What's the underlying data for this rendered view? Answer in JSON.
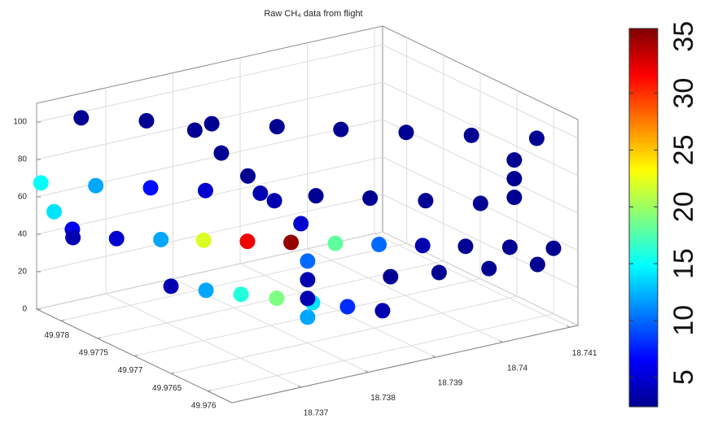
{
  "chart_data": {
    "type": "scatter3d",
    "title": "Raw CH₄ data from flight",
    "x": [
      49.9784,
      49.97806,
      49.97772,
      49.97738,
      49.97705,
      49.97671,
      49.97637,
      49.97603,
      49.97607,
      49.97607,
      49.97607,
      49.9761,
      49.97639,
      49.97668,
      49.97696,
      49.97725,
      49.97754,
      49.97783,
      49.97811,
      49.9784,
      49.97833,
      49.9782,
      49.97811,
      49.9779,
      49.97769,
      49.97749,
      49.97728,
      49.97707,
      49.97686,
      49.97665,
      49.97644,
      49.97624,
      49.97603,
      49.97582,
      49.97612,
      49.97625,
      49.97639,
      49.97652,
      49.97801,
      49.97778,
      49.97755,
      49.97732,
      49.97708,
      49.97685,
      49.97662,
      49.977,
      49.977,
      49.977,
      49.977,
      49.97785,
      49.97769,
      49.97753,
      49.97737,
      49.97721
    ],
    "y": [
      18.73671,
      18.73731,
      18.73791,
      18.73851,
      18.7391,
      18.7397,
      18.7403,
      18.7409,
      18.74061,
      18.74061,
      18.74061,
      18.74014,
      18.73964,
      18.73913,
      18.73863,
      18.73812,
      18.73762,
      18.73712,
      18.73661,
      18.73611,
      18.73623,
      18.73636,
      18.73627,
      18.73669,
      18.73712,
      18.73754,
      18.73796,
      18.73838,
      18.73881,
      18.73923,
      18.73965,
      18.74007,
      18.7405,
      18.74092,
      18.74101,
      18.74043,
      18.73984,
      18.73926,
      18.73762,
      18.73789,
      18.73816,
      18.73844,
      18.73871,
      18.73898,
      18.73925,
      18.73855,
      18.73855,
      18.73855,
      18.73855,
      18.7378,
      18.73802,
      18.73824,
      18.73846,
      18.73868
    ],
    "z": [
      95,
      95,
      95,
      95,
      95,
      95,
      95,
      95,
      85,
      75,
      65,
      65,
      65,
      65,
      65,
      65,
      65,
      65,
      65,
      65,
      50,
      42,
      40,
      40,
      40,
      40,
      40,
      40,
      40,
      40,
      40,
      40,
      40,
      40,
      25,
      25,
      25,
      25,
      5,
      5,
      5,
      5,
      5,
      5,
      5,
      30,
      20,
      10,
      0,
      90,
      79,
      68,
      56,
      45
    ],
    "values": [
      3,
      3,
      3,
      3,
      3,
      3,
      3,
      3,
      3,
      3,
      3,
      3,
      3,
      3,
      3,
      4,
      5,
      7,
      12,
      15,
      14,
      6,
      4,
      5,
      12,
      22,
      32,
      35,
      18,
      10,
      4,
      3,
      3,
      3,
      3,
      3,
      3,
      3,
      4,
      12,
      16,
      19,
      14,
      8,
      4,
      10,
      4,
      4,
      12,
      3,
      3,
      3,
      4,
      5
    ],
    "xlim": [
      49.97567,
      49.97833
    ],
    "ylim": [
      18.73597,
      18.74112
    ],
    "zlim": [
      0,
      110
    ],
    "xticks": [
      49.976,
      49.9765,
      49.977,
      49.9775,
      49.978
    ],
    "yticks": [
      18.737,
      18.738,
      18.739,
      18.74,
      18.741
    ],
    "zticks": [
      0,
      20,
      40,
      60,
      80,
      100
    ],
    "clim": [
      2.4,
      35.7
    ],
    "cticks": [
      5,
      10,
      15,
      20,
      25,
      30,
      35
    ],
    "colormap": "jet",
    "grid": true
  }
}
